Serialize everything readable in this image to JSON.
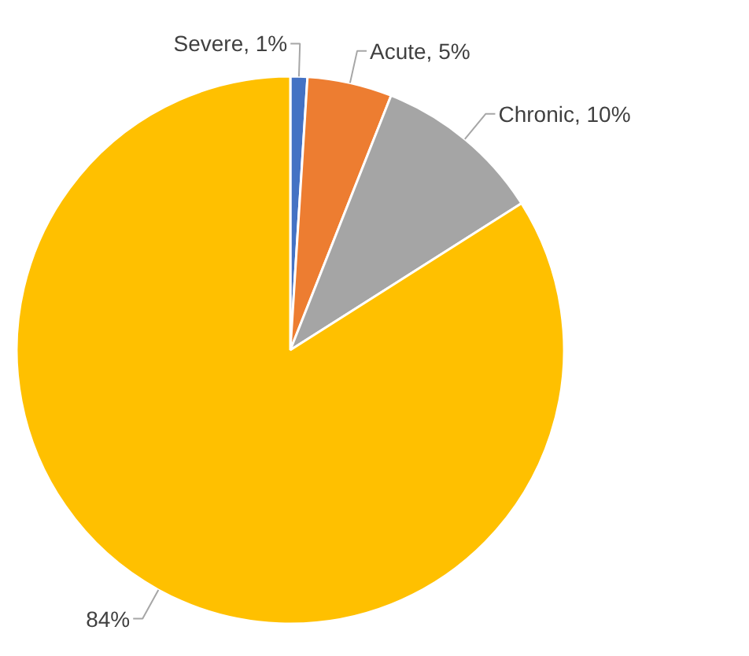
{
  "chart_data": {
    "type": "pie",
    "categories": [
      "Severe",
      "Acute",
      "Chronic",
      null
    ],
    "values": [
      1,
      5,
      10,
      84
    ],
    "colors": [
      "#4472c4",
      "#ed7d31",
      "#a5a5a5",
      "#ffc000"
    ],
    "value_labels": [
      "1%",
      "5%",
      "10%",
      "84%"
    ]
  }
}
